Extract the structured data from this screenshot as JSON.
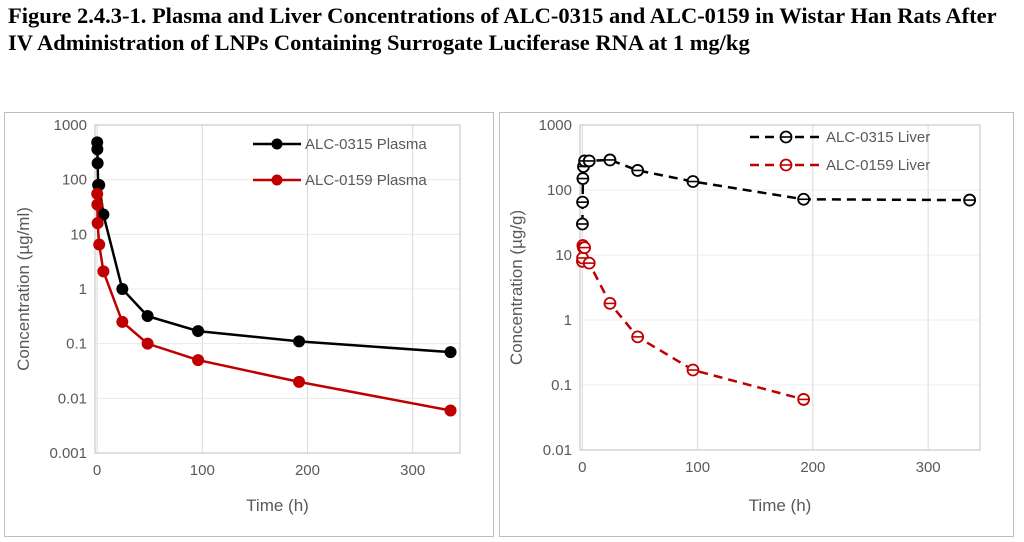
{
  "figure": {
    "title": "Figure 2.4.3-1. Plasma and Liver Concentrations of ALC-0315 and ALC-0159 in Wistar Han Rats After IV Administration of LNPs Containing Surrogate Luciferase RNA at 1 mg/kg"
  },
  "chart_data": [
    {
      "type": "line",
      "xlabel": "Time (h)",
      "ylabel": "Concentration (µg/ml)",
      "xlim": [
        -2,
        345
      ],
      "xticks": [
        0,
        100,
        200,
        300
      ],
      "ylim": [
        0.001,
        1000
      ],
      "yscale": "log",
      "yticks": [
        {
          "value": 0.001,
          "label": "0.001"
        },
        {
          "value": 0.01,
          "label": "0.01"
        },
        {
          "value": 0.1,
          "label": "0.1"
        },
        {
          "value": 1,
          "label": "1"
        },
        {
          "value": 10,
          "label": "10"
        },
        {
          "value": 100,
          "label": "100"
        },
        {
          "value": 1000,
          "label": "1000"
        }
      ],
      "grid": "vertical",
      "legend": "top-right",
      "series": [
        {
          "name": "ALC-0315 Plasma",
          "color": "#000000",
          "marker": "filled-circle",
          "line": "solid",
          "points": [
            [
              0.1,
              480
            ],
            [
              0.25,
              360
            ],
            [
              0.5,
              200
            ],
            [
              1,
              80
            ],
            [
              2,
              80
            ],
            [
              6,
              23
            ],
            [
              24,
              1.0
            ],
            [
              48,
              0.32
            ],
            [
              96,
              0.17
            ],
            [
              192,
              0.11
            ],
            [
              336,
              0.07
            ]
          ]
        },
        {
          "name": "ALC-0159 Plasma",
          "color": "#c00000",
          "marker": "filled-circle",
          "line": "solid",
          "points": [
            [
              0.1,
              55
            ],
            [
              0.25,
              35
            ],
            [
              0.5,
              16
            ],
            [
              2,
              6.5
            ],
            [
              6,
              2.1
            ],
            [
              24,
              0.25
            ],
            [
              48,
              0.1
            ],
            [
              96,
              0.05
            ],
            [
              192,
              0.02
            ],
            [
              336,
              0.006
            ]
          ]
        }
      ]
    },
    {
      "type": "line",
      "xlabel": "Time (h)",
      "ylabel": "Concentration (µg/g)",
      "xlim": [
        -2,
        345
      ],
      "xticks": [
        0,
        100,
        200,
        300
      ],
      "ylim": [
        0.01,
        1000
      ],
      "yscale": "log",
      "yticks": [
        {
          "value": 0.01,
          "label": "0.01"
        },
        {
          "value": 0.1,
          "label": "0.1"
        },
        {
          "value": 1,
          "label": "1"
        },
        {
          "value": 10,
          "label": "10"
        },
        {
          "value": 100,
          "label": "100"
        },
        {
          "value": 1000,
          "label": "1000"
        }
      ],
      "grid": "vertical",
      "legend": "top-right",
      "series": [
        {
          "name": "ALC-0315 Liver",
          "color": "#000000",
          "marker": "open-circle",
          "line": "dashed",
          "points": [
            [
              0.1,
              30
            ],
            [
              0.25,
              65
            ],
            [
              0.5,
              150
            ],
            [
              1,
              230
            ],
            [
              2,
              280
            ],
            [
              6,
              280
            ],
            [
              24,
              290
            ],
            [
              48,
              200
            ],
            [
              96,
              135
            ],
            [
              192,
              72
            ],
            [
              336,
              70
            ]
          ]
        },
        {
          "name": "ALC-0159 Liver",
          "color": "#c00000",
          "marker": "open-circle",
          "line": "dashed",
          "points": [
            [
              0.1,
              8
            ],
            [
              0.25,
              9
            ],
            [
              0.5,
              14
            ],
            [
              1,
              13
            ],
            [
              2,
              13
            ],
            [
              6,
              7.5
            ],
            [
              24,
              1.8
            ],
            [
              48,
              0.55
            ],
            [
              96,
              0.17
            ],
            [
              192,
              0.06
            ]
          ]
        }
      ]
    }
  ]
}
